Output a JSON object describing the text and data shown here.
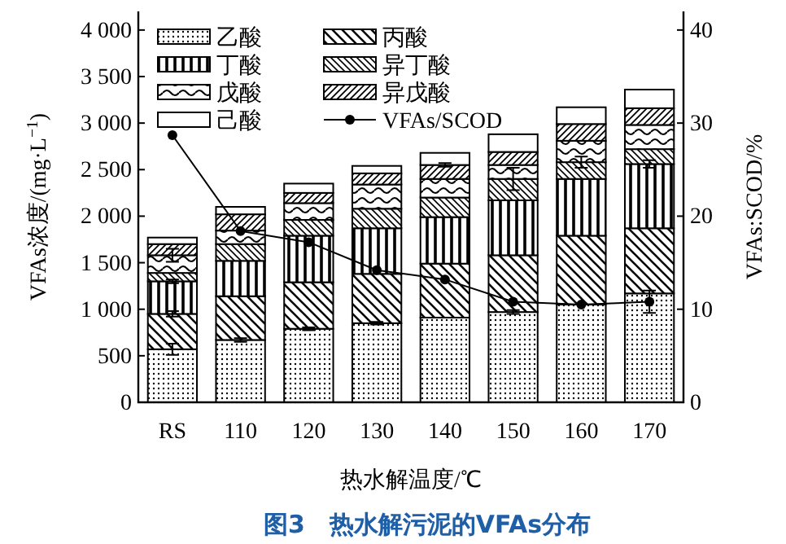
{
  "chart_data": {
    "type": "bar",
    "stacked": true,
    "title": "图3　热水解污泥的VFAs分布",
    "xlabel": "热水解温度/℃",
    "ylabel": "VFAs浓度/(mg·L$^{−1}$)",
    "y2label": "VFAs:SCOD/%",
    "categories": [
      "RS",
      "110",
      "120",
      "130",
      "140",
      "150",
      "160",
      "170"
    ],
    "ylim": [
      0,
      4200
    ],
    "yticks": [
      0,
      {
        "value": 500,
        "label": "500"
      },
      {
        "value": 1000,
        "label": "1 000"
      },
      {
        "value": 1500,
        "label": "1 500"
      },
      {
        "value": 2000,
        "label": "2 000"
      },
      {
        "value": 2500,
        "label": "2 500"
      },
      {
        "value": 3000,
        "label": "3 000"
      },
      {
        "value": 3500,
        "label": "3 500"
      },
      {
        "value": 4000,
        "label": "4 000"
      }
    ],
    "y2lim": [
      0,
      42
    ],
    "y2ticks": [
      0,
      10,
      20,
      30,
      40
    ],
    "legend": "top left",
    "grid": false,
    "series": [
      {
        "name": "乙酸",
        "color": "#000000",
        "values": [
          570,
          670,
          790,
          850,
          910,
          970,
          1050,
          1170
        ],
        "errors": [
          60,
          20,
          15,
          15,
          null,
          20,
          null,
          null
        ]
      },
      {
        "name": "丙酸",
        "color": "#000000",
        "values": [
          380,
          470,
          500,
          530,
          580,
          610,
          740,
          700
        ],
        "errors": [
          30,
          null,
          null,
          null,
          null,
          null,
          null,
          null
        ]
      },
      {
        "name": "丁酸",
        "color": "#000000",
        "values": [
          350,
          380,
          500,
          490,
          500,
          590,
          610,
          690
        ],
        "errors": [
          20,
          null,
          null,
          null,
          null,
          null,
          null,
          40
        ]
      },
      {
        "name": "异丁酸",
        "color": "#000000",
        "values": [
          90,
          180,
          170,
          210,
          210,
          230,
          180,
          160
        ],
        "errors": [
          null,
          null,
          null,
          null,
          null,
          120,
          60,
          null
        ]
      },
      {
        "name": "戊酸",
        "color": "#000000",
        "values": [
          190,
          145,
          180,
          260,
          200,
          150,
          230,
          260
        ],
        "errors": [
          70,
          null,
          null,
          null,
          null,
          null,
          null,
          null
        ]
      },
      {
        "name": "异戊酸",
        "color": "#000000",
        "values": [
          120,
          175,
          110,
          120,
          150,
          140,
          180,
          180
        ],
        "errors": [
          null,
          null,
          null,
          null,
          20,
          null,
          null,
          null
        ]
      },
      {
        "name": "己酸",
        "color": "#000000",
        "values": [
          70,
          80,
          100,
          80,
          130,
          190,
          180,
          200
        ],
        "errors": [
          null,
          null,
          null,
          null,
          null,
          null,
          null,
          null
        ]
      },
      {
        "name": "VFAs/SCOD",
        "type": "line",
        "axis": "y2",
        "marker": "circle",
        "color": "#000000",
        "values": [
          28.7,
          18.4,
          17.2,
          14.2,
          13.2,
          10.8,
          10.5,
          10.8
        ],
        "errors": [
          null,
          null,
          null,
          null,
          null,
          null,
          null,
          1.2
        ]
      }
    ]
  }
}
